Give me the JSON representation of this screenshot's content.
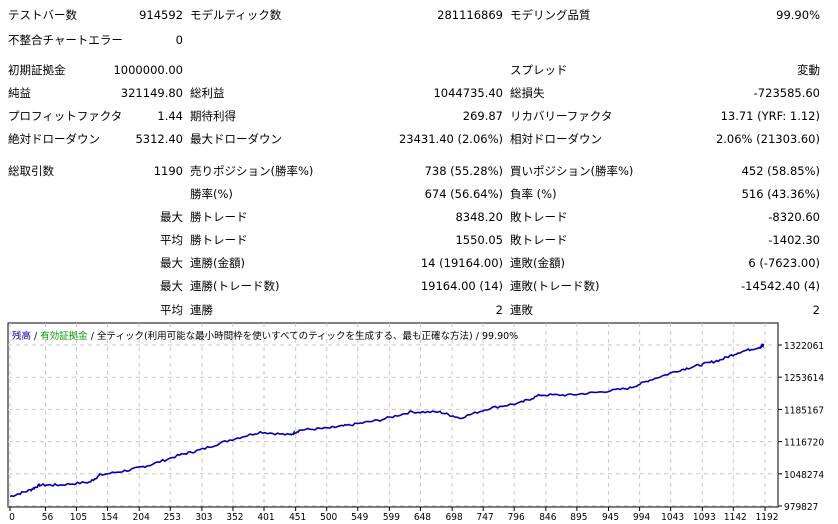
{
  "stats": {
    "rows": [
      {
        "l1": "テストバー数",
        "v1": "914592",
        "l2": "モデルティック数",
        "v2": "281116869",
        "l3": "モデリング品質",
        "v3": "99.90%"
      },
      {
        "l1": "不整合チャートエラー",
        "v1": "0"
      },
      {
        "l1": "初期証拠金",
        "v1": "1000000.00",
        "l3": "スプレッド",
        "v3": "変動"
      },
      {
        "l1": "純益",
        "v1": "321149.80",
        "l2": "総利益",
        "v2": "1044735.40",
        "l3": "総損失",
        "v3": "-723585.60"
      },
      {
        "l1": "プロフィットファクタ",
        "v1": "1.44",
        "l2": "期待利得",
        "v2": "269.87",
        "l3": "リカバリーファクタ",
        "v3": "13.71 (YRF: 1.12)"
      },
      {
        "l1": "絶対ドローダウン",
        "v1": "5312.40",
        "l2": "最大ドローダウン",
        "v2": "23431.40 (2.06%)",
        "l3": "相対ドローダウン",
        "v3": "2.06% (21303.60)"
      },
      {
        "l1": "総取引数",
        "v1": "1190",
        "l2": "売りポジション(勝率%)",
        "v2": "738 (55.28%)",
        "l3": "買いポジション(勝率%)",
        "v3": "452 (58.85%)"
      },
      {
        "l2": "勝率(%)",
        "v2": "674 (56.64%)",
        "l3": "負率 (%)",
        "v3": "516 (43.36%)"
      },
      {
        "p": "最大",
        "l2": "勝トレード",
        "v2": "8348.20",
        "l3": "敗トレード",
        "v3": "-8320.60"
      },
      {
        "p": "平均",
        "l2": "勝トレード",
        "v2": "1550.05",
        "l3": "敗トレード",
        "v3": "-1402.30"
      },
      {
        "p": "最大",
        "l2": "連勝(金額)",
        "v2": "14 (19164.00)",
        "l3": "連敗(金額)",
        "v3": "6 (-7623.00)"
      },
      {
        "p": "最大",
        "l2": "連勝(トレード数)",
        "v2": "19164.00 (14)",
        "l3": "連敗(トレード数)",
        "v3": "-14542.40 (4)"
      },
      {
        "p": "平均",
        "l2": "連勝",
        "v2": "2",
        "l3": "連敗",
        "v3": "2"
      }
    ]
  },
  "legend": {
    "balance": "残高",
    "sep1": " / ",
    "equity": "有効証拠金",
    "rest": " / 全ティック(利用可能な最小時間枠を使いすべてのティックを生成する、最も正確な方法) / 99.90%"
  },
  "colors": {
    "balance": "#0000b0",
    "equity": "#00a000",
    "grid": "#c8c8c8"
  },
  "chart_data": {
    "type": "line",
    "title": "",
    "xlabel": "",
    "ylabel": "",
    "x_ticks": [
      "0",
      "56",
      "105",
      "154",
      "204",
      "253",
      "303",
      "352",
      "401",
      "451",
      "500",
      "549",
      "599",
      "648",
      "698",
      "747",
      "796",
      "846",
      "895",
      "945",
      "994",
      "1043",
      "1093",
      "1142",
      "1192"
    ],
    "y_ticks": [
      "1322061",
      "1253614",
      "1185167",
      "1116720",
      "1048274",
      "979827"
    ],
    "xlim": [
      0,
      1210
    ],
    "ylim": [
      979827,
      1370000
    ],
    "grid": true,
    "series": [
      {
        "name": "残高",
        "x": [
          0,
          32,
          47,
          79,
          126,
          142,
          189,
          221,
          268,
          300,
          347,
          395,
          442,
          458,
          505,
          537,
          584,
          632,
          679,
          710,
          758,
          805,
          837,
          884,
          932,
          979,
          1010,
          1058,
          1089,
          1121,
          1152,
          1184,
          1190
        ],
        "y": [
          1000000,
          1013800,
          1024500,
          1024500,
          1030800,
          1045700,
          1056400,
          1067000,
          1088200,
          1098900,
          1120100,
          1137100,
          1130800,
          1141400,
          1145600,
          1152000,
          1162600,
          1179600,
          1179600,
          1166900,
          1188100,
          1198800,
          1215800,
          1215800,
          1222100,
          1230600,
          1247600,
          1268900,
          1279500,
          1290100,
          1307100,
          1317700,
          1321149.8
        ]
      }
    ]
  }
}
